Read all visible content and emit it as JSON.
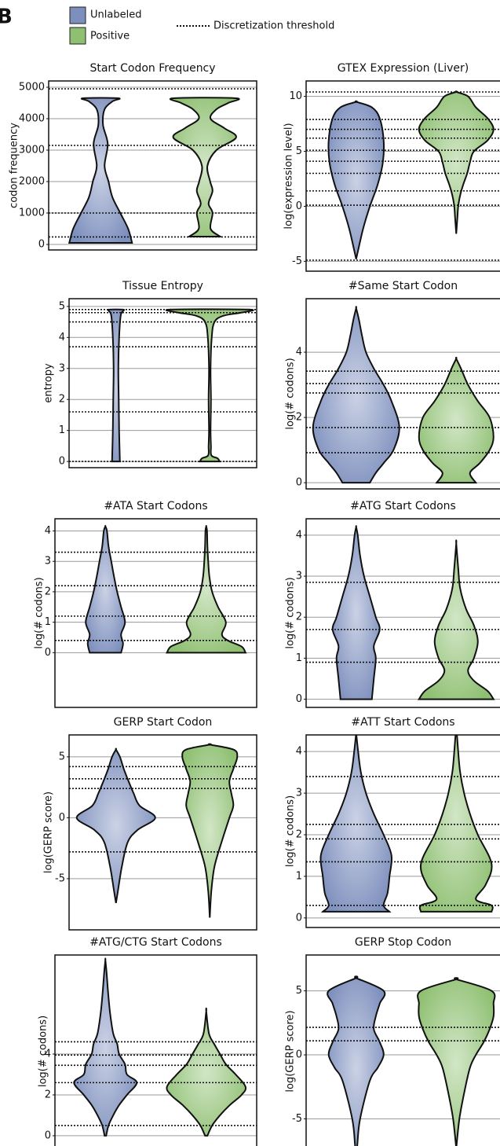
{
  "panel_label": "B",
  "legend": [
    {
      "name": "Unlabeled",
      "color": "#7d8fbd"
    },
    {
      "name": "Positive",
      "color": "#8fc072"
    }
  ],
  "threshold_label": "Discretization threshold",
  "chart_data": [
    {
      "type": "violin",
      "title": "Start Codon Frequency",
      "ylabel": "codon frequency",
      "ylim": [
        -175,
        5200
      ],
      "yticks": [
        0,
        1000,
        2000,
        3000,
        4000,
        5000
      ],
      "grid": true,
      "thresholds": [
        240,
        1000,
        3150,
        4950
      ],
      "series": [
        {
          "levels": [
            50,
            500,
            1000,
            1500,
            2000,
            2500,
            3200,
            3800,
            4300,
            4550,
            4650
          ],
          "widths": [
            0.8,
            0.7,
            0.5,
            0.3,
            0.2,
            0.1,
            0.18,
            0.06,
            0.1,
            0.3,
            0.45
          ]
        },
        {
          "levels": [
            250,
            500,
            1000,
            1300,
            1700,
            2000,
            2500,
            3000,
            3400,
            3700,
            4000,
            4300,
            4500,
            4650
          ],
          "widths": [
            0.4,
            0.15,
            0.2,
            0.1,
            0.2,
            0.14,
            0.07,
            0.3,
            0.8,
            0.5,
            0.15,
            0.3,
            0.6,
            0.8
          ]
        }
      ]
    },
    {
      "type": "violin",
      "title": "GTEX Expression (Liver)",
      "ylabel": "log(expression level)",
      "ylim": [
        -5.9,
        11.4
      ],
      "yticks": [
        -5,
        0,
        5,
        10
      ],
      "grid": true,
      "thresholds": [
        -4.9,
        0.1,
        1.4,
        3.0,
        4.1,
        5.1,
        6.2,
        7.0,
        7.9,
        10.4
      ],
      "series": [
        {
          "levels": [
            -4.8,
            -4,
            -2,
            0,
            2,
            4,
            6,
            8,
            9,
            9.5
          ],
          "widths": [
            0,
            0.05,
            0.18,
            0.35,
            0.55,
            0.68,
            0.7,
            0.6,
            0.4,
            0
          ]
        },
        {
          "levels": [
            -2.5,
            -1,
            0,
            1,
            2,
            3,
            4,
            5,
            6,
            7,
            8,
            9,
            10,
            10.4
          ],
          "widths": [
            0,
            0.03,
            0.05,
            0.1,
            0.18,
            0.28,
            0.35,
            0.45,
            0.8,
            0.95,
            0.8,
            0.5,
            0.3,
            0
          ]
        }
      ]
    },
    {
      "type": "violin",
      "title": "Tissue Entropy",
      "ylabel": "entropy",
      "ylim": [
        -0.2,
        5.25
      ],
      "yticks": [
        0,
        1,
        2,
        3,
        4,
        5
      ],
      "grid": true,
      "thresholds": [
        0,
        1.6,
        3.7,
        4.5,
        4.8,
        4.9
      ],
      "series": [
        {
          "levels": [
            0,
            1,
            2,
            3,
            4,
            4.7,
            4.85,
            4.9
          ],
          "widths": [
            0.1,
            0.08,
            0.07,
            0.06,
            0.08,
            0.12,
            0.18,
            0.18
          ]
        },
        {
          "levels": [
            0,
            0.1,
            0.2,
            0.5,
            1,
            2,
            3,
            4,
            4.5,
            4.7,
            4.8,
            4.9
          ],
          "widths": [
            0.25,
            0.2,
            0.04,
            0.03,
            0.02,
            0.03,
            0.02,
            0.05,
            0.12,
            0.35,
            0.8,
            1.0
          ]
        }
      ]
    },
    {
      "type": "violin",
      "title": "#Same Start Codon",
      "ylabel": "log(# codons)",
      "ylim": [
        -0.19,
        5.64
      ],
      "yticks": [
        0,
        2,
        4
      ],
      "grid": true,
      "thresholds": [
        0.92,
        1.69,
        2.75,
        3.04,
        3.42
      ],
      "series": [
        {
          "levels": [
            0,
            0.3,
            0.6,
            1,
            1.7,
            2.5,
            3,
            3.5,
            4,
            4.5,
            5,
            5.35
          ],
          "widths": [
            0.35,
            0.5,
            0.7,
            0.95,
            1.1,
            0.9,
            0.7,
            0.45,
            0.25,
            0.15,
            0.07,
            0
          ]
        },
        {
          "levels": [
            0,
            0.3,
            0.6,
            1,
            1.4,
            2,
            2.5,
            3,
            3.5,
            3.8
          ],
          "widths": [
            0.5,
            0.35,
            0.6,
            0.85,
            0.95,
            0.85,
            0.55,
            0.3,
            0.12,
            0
          ]
        }
      ]
    },
    {
      "type": "violin",
      "title": "#ATA Start Codons",
      "ylabel": "log(# codons)",
      "ylim": [
        -1.8,
        4.4
      ],
      "yticks": [
        0,
        1,
        2,
        3,
        4
      ],
      "grid": true,
      "thresholds": [
        0.4,
        1.2,
        2.2,
        3.3
      ],
      "series": [
        {
          "levels": [
            0,
            0.3,
            0.6,
            1,
            1.5,
            2,
            2.5,
            3,
            3.5,
            4,
            4.15
          ],
          "widths": [
            0.4,
            0.45,
            0.4,
            0.5,
            0.4,
            0.3,
            0.22,
            0.15,
            0.08,
            0.04,
            0
          ]
        },
        {
          "levels": [
            0,
            0.2,
            0.4,
            0.6,
            1,
            1.5,
            2,
            2.5,
            3,
            3.5,
            4,
            4.15
          ],
          "widths": [
            1.0,
            0.9,
            0.55,
            0.4,
            0.5,
            0.3,
            0.15,
            0.08,
            0.05,
            0.03,
            0.02,
            0
          ]
        }
      ]
    },
    {
      "type": "violin",
      "title": "#ATG Start Codons",
      "ylabel": "log(# codons)",
      "ylim": [
        -0.2,
        4.4
      ],
      "yticks": [
        0,
        1,
        2,
        3,
        4
      ],
      "grid": true,
      "thresholds": [
        0.9,
        1.7,
        2.85
      ],
      "series": [
        {
          "levels": [
            0,
            0.5,
            1,
            1.3,
            1.7,
            2,
            2.5,
            3,
            3.5,
            4,
            4.2
          ],
          "widths": [
            0.4,
            0.45,
            0.5,
            0.45,
            0.6,
            0.5,
            0.35,
            0.2,
            0.1,
            0.04,
            0
          ]
        },
        {
          "levels": [
            0,
            0.2,
            0.45,
            0.7,
            1,
            1.4,
            1.8,
            2.2,
            2.7,
            3.2,
            3.8
          ],
          "widths": [
            0.95,
            0.8,
            0.45,
            0.3,
            0.45,
            0.55,
            0.45,
            0.25,
            0.1,
            0.05,
            0
          ]
        }
      ]
    },
    {
      "type": "violin",
      "title": "GERP Start Codon",
      "ylabel": "log(GERP score)",
      "ylim": [
        -9.2,
        6.8
      ],
      "yticks": [
        -5,
        0,
        5
      ],
      "grid": true,
      "thresholds": [
        -2.8,
        2.4,
        3.2,
        4.2
      ],
      "series": [
        {
          "levels": [
            -7,
            -6,
            -4,
            -2,
            -1,
            0,
            1,
            2,
            3,
            4,
            5,
            5.6
          ],
          "widths": [
            0,
            0.05,
            0.15,
            0.3,
            0.55,
            1.0,
            0.6,
            0.45,
            0.32,
            0.2,
            0.1,
            0
          ]
        },
        {
          "levels": [
            -8.2,
            -6,
            -4,
            -2,
            0,
            1,
            2,
            3,
            4,
            5,
            5.6,
            6
          ],
          "widths": [
            0,
            0.04,
            0.12,
            0.3,
            0.5,
            0.6,
            0.55,
            0.5,
            0.6,
            0.7,
            0.6,
            0
          ]
        }
      ]
    },
    {
      "type": "violin",
      "title": "#ATT Start Codons",
      "ylabel": "log(# codons)",
      "ylim": [
        -0.23,
        4.4
      ],
      "yticks": [
        0,
        1,
        2,
        3,
        4
      ],
      "grid": true,
      "thresholds": [
        0.3,
        1.35,
        1.9,
        2.25,
        3.4
      ],
      "series": [
        {
          "levels": [
            0.15,
            0.3,
            0.6,
            1,
            1.5,
            2,
            2.5,
            3,
            3.5,
            4,
            4.45
          ],
          "widths": [
            0.85,
            0.7,
            0.8,
            0.85,
            0.9,
            0.7,
            0.45,
            0.25,
            0.12,
            0.05,
            0
          ]
        },
        {
          "levels": [
            0.15,
            0.3,
            0.45,
            0.8,
            1.3,
            2,
            2.5,
            3,
            3.5,
            4,
            4.65
          ],
          "widths": [
            0.9,
            0.9,
            0.5,
            0.75,
            0.9,
            0.55,
            0.35,
            0.2,
            0.1,
            0.05,
            0
          ]
        }
      ]
    },
    {
      "type": "violin",
      "title": "#ATG/CTG Start Codons",
      "ylabel": "log(# codons)",
      "ylim": [
        -0.58,
        8.85
      ],
      "yticks": [
        0,
        2,
        4
      ],
      "grid": true,
      "thresholds": [
        0.5,
        2.6,
        3.45,
        3.95,
        4.6
      ],
      "series": [
        {
          "levels": [
            0,
            0.5,
            1,
            1.5,
            2,
            2.6,
            3,
            3.5,
            4,
            4.5,
            5,
            6,
            7,
            8,
            8.6
          ],
          "widths": [
            0.02,
            0.08,
            0.2,
            0.35,
            0.55,
            0.8,
            0.55,
            0.5,
            0.35,
            0.3,
            0.2,
            0.12,
            0.07,
            0.03,
            0
          ]
        },
        {
          "levels": [
            0,
            0.5,
            1,
            1.5,
            2,
            2.4,
            3,
            3.5,
            4,
            4.5,
            5,
            6.1
          ],
          "widths": [
            0.03,
            0.15,
            0.35,
            0.6,
            0.9,
            1.0,
            0.75,
            0.5,
            0.35,
            0.2,
            0.07,
            0
          ]
        }
      ]
    },
    {
      "type": "violin",
      "title": "GERP Stop Codon",
      "ylabel": "log(GERP score)",
      "ylim": [
        -7.24,
        7.8
      ],
      "yticks": [
        -5,
        0,
        5
      ],
      "grid": true,
      "thresholds": [
        1.1,
        2.15
      ],
      "series": [
        {
          "levels": [
            -8.3,
            -7,
            -5,
            -2,
            -1,
            0,
            1,
            2,
            3,
            4,
            5,
            6
          ],
          "widths": [
            0,
            0.03,
            0.1,
            0.35,
            0.55,
            0.7,
            0.6,
            0.45,
            0.5,
            0.6,
            0.7,
            0
          ]
        },
        {
          "levels": [
            -7.3,
            -5,
            -3,
            -1,
            0,
            1,
            2,
            3,
            4,
            5,
            5.9
          ],
          "widths": [
            0,
            0.08,
            0.2,
            0.35,
            0.5,
            0.7,
            0.85,
            0.95,
            0.95,
            0.9,
            0
          ]
        }
      ]
    }
  ]
}
